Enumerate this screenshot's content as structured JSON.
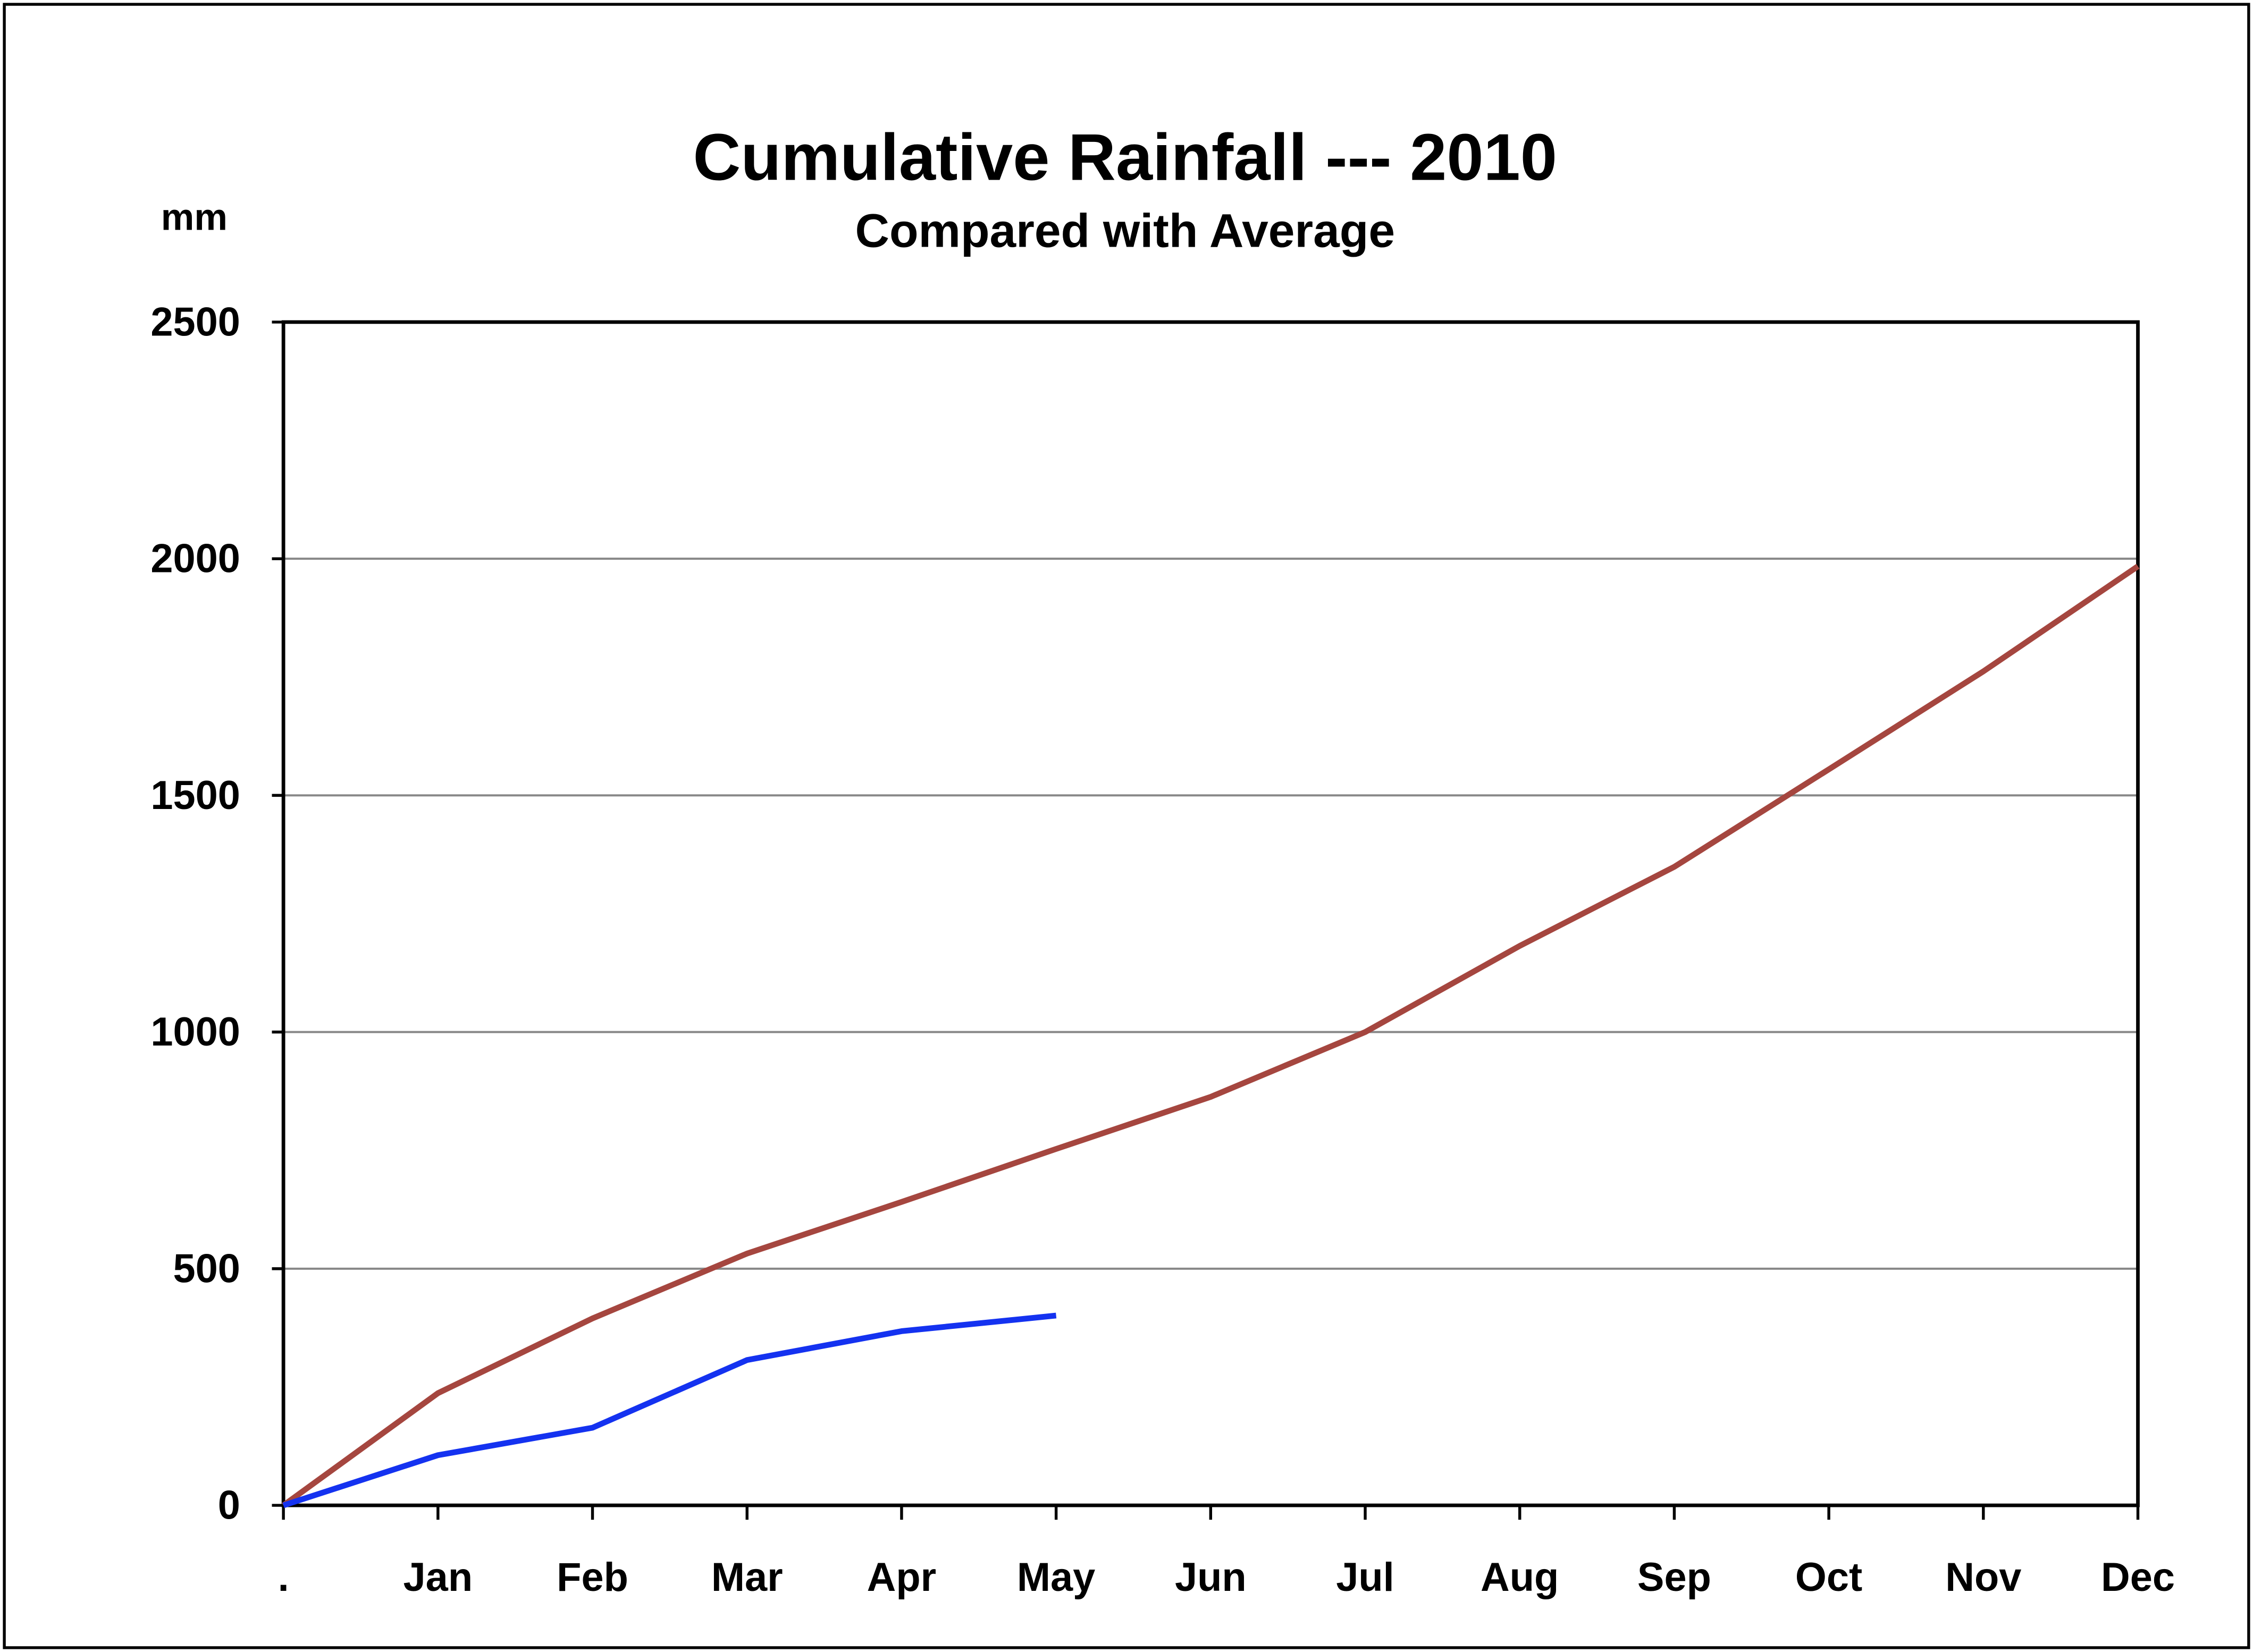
{
  "chart_data": {
    "type": "line",
    "title": "Cumulative Rainfall --- 2010",
    "subtitle": "Compared with Average",
    "y_label": "mm",
    "categories": [
      ".",
      "Jan",
      "Feb",
      "Mar",
      "Apr",
      "May",
      "Jun",
      "Jul",
      "Aug",
      "Sep",
      "Oct",
      "Nov",
      "Dec"
    ],
    "series": [
      {
        "color": "#a5463f",
        "values": [
          0,
          237,
          395,
          532,
          641,
          753,
          863,
          1000,
          1182,
          1349,
          1555,
          1762,
          1984
        ]
      },
      {
        "color": "#1432f0",
        "values": [
          0,
          106,
          164,
          307,
          368,
          401,
          null,
          null,
          null,
          null,
          null,
          null,
          null
        ]
      }
    ],
    "ylim": [
      0,
      2500
    ],
    "yticks": [
      0,
      500,
      1000,
      1500,
      2000,
      2500
    ],
    "grid": true
  }
}
